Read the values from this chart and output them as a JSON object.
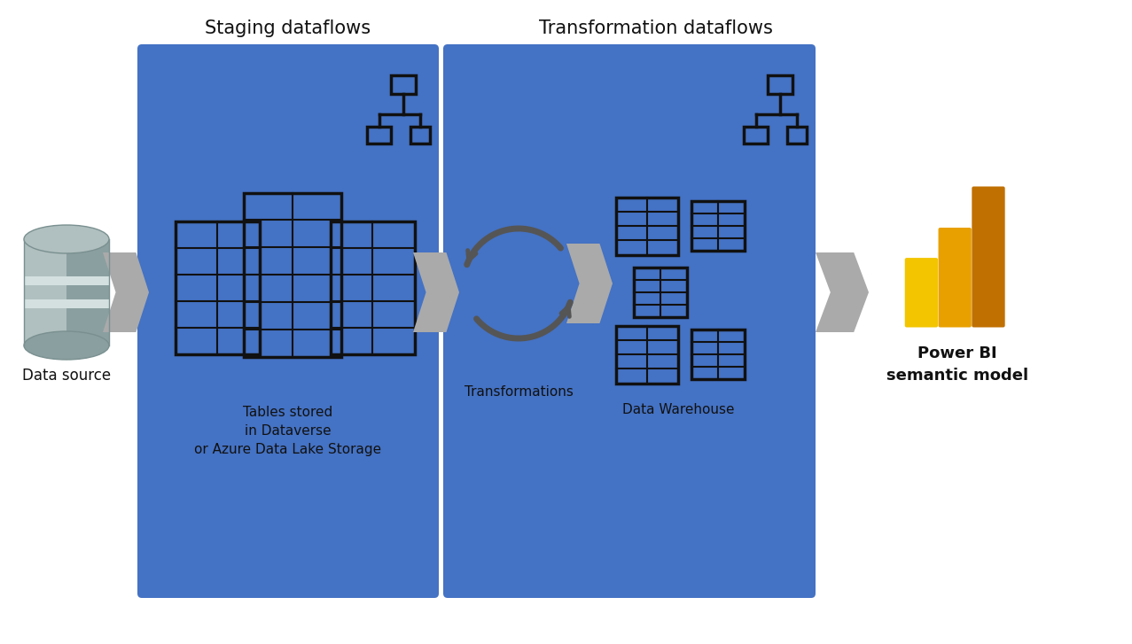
{
  "bg_color": "#ffffff",
  "blue_color": "#4472C4",
  "title_staging": "Staging dataflows",
  "title_transform": "Transformation dataflows",
  "label_datasource": "Data source",
  "label_tables": "Tables stored\nin Dataverse\nor Azure Data Lake Storage",
  "label_transformations": "Transformations",
  "label_datawarehouse": "Data Warehouse",
  "label_powerbi": "Power BI\nsemantic model",
  "arrow_color": "#AAAAAA",
  "icon_border": "#111111",
  "icon_fill": "#4472C4",
  "circ_arrow_color": "#555555",
  "pbi_colors": [
    "#F2C500",
    "#E8A000",
    "#C07000"
  ],
  "cyl_light": "#B0BFBF",
  "cyl_dark": "#8A9FA0",
  "cyl_stripe": "#D4E0E0",
  "cyl_outline": "#7A9090"
}
